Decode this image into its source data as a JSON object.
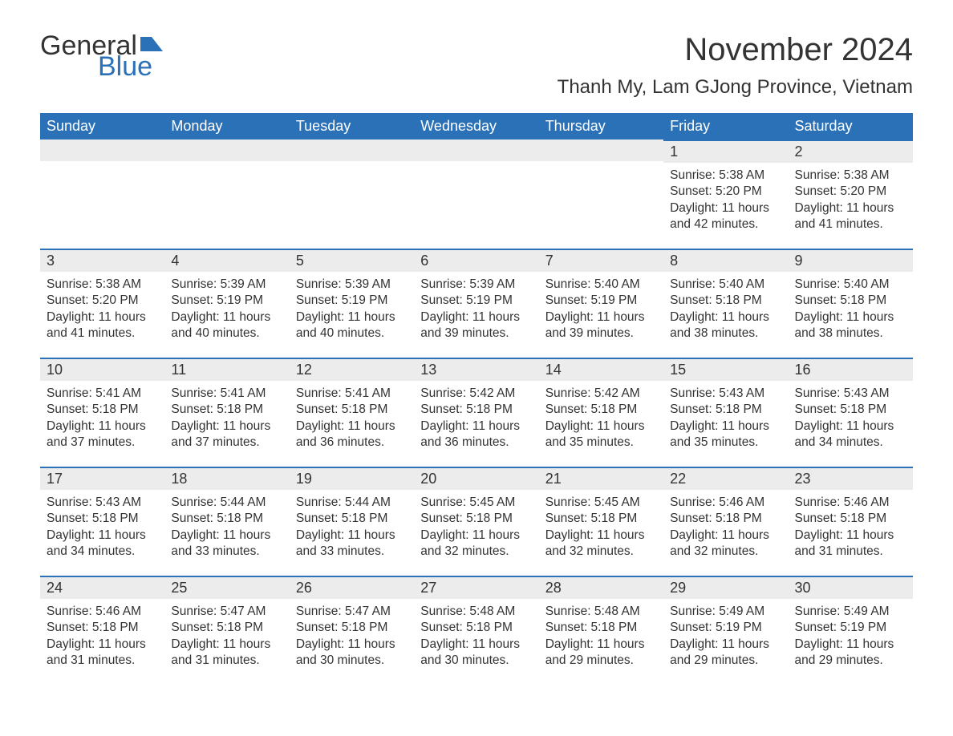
{
  "logo": {
    "text_general": "General",
    "text_blue": "Blue"
  },
  "header": {
    "month_title": "November 2024",
    "location": "Thanh My, Lam GJong Province, Vietnam"
  },
  "colors": {
    "brand_blue": "#2b71b8",
    "header_row_bg": "#2b71b8",
    "header_row_text": "#ffffff",
    "daynum_bg": "#ececec",
    "body_text": "#333333",
    "page_bg": "#ffffff"
  },
  "typography": {
    "month_title_pt": 40,
    "location_pt": 24,
    "weekday_pt": 18,
    "daynum_pt": 18,
    "body_pt": 15.5,
    "font_family": "Arial"
  },
  "calendar": {
    "weekdays": [
      "Sunday",
      "Monday",
      "Tuesday",
      "Wednesday",
      "Thursday",
      "Friday",
      "Saturday"
    ],
    "leading_blanks": 5,
    "days": [
      {
        "n": 1,
        "sunrise": "5:38 AM",
        "sunset": "5:20 PM",
        "daylight": "11 hours and 42 minutes."
      },
      {
        "n": 2,
        "sunrise": "5:38 AM",
        "sunset": "5:20 PM",
        "daylight": "11 hours and 41 minutes."
      },
      {
        "n": 3,
        "sunrise": "5:38 AM",
        "sunset": "5:20 PM",
        "daylight": "11 hours and 41 minutes."
      },
      {
        "n": 4,
        "sunrise": "5:39 AM",
        "sunset": "5:19 PM",
        "daylight": "11 hours and 40 minutes."
      },
      {
        "n": 5,
        "sunrise": "5:39 AM",
        "sunset": "5:19 PM",
        "daylight": "11 hours and 40 minutes."
      },
      {
        "n": 6,
        "sunrise": "5:39 AM",
        "sunset": "5:19 PM",
        "daylight": "11 hours and 39 minutes."
      },
      {
        "n": 7,
        "sunrise": "5:40 AM",
        "sunset": "5:19 PM",
        "daylight": "11 hours and 39 minutes."
      },
      {
        "n": 8,
        "sunrise": "5:40 AM",
        "sunset": "5:18 PM",
        "daylight": "11 hours and 38 minutes."
      },
      {
        "n": 9,
        "sunrise": "5:40 AM",
        "sunset": "5:18 PM",
        "daylight": "11 hours and 38 minutes."
      },
      {
        "n": 10,
        "sunrise": "5:41 AM",
        "sunset": "5:18 PM",
        "daylight": "11 hours and 37 minutes."
      },
      {
        "n": 11,
        "sunrise": "5:41 AM",
        "sunset": "5:18 PM",
        "daylight": "11 hours and 37 minutes."
      },
      {
        "n": 12,
        "sunrise": "5:41 AM",
        "sunset": "5:18 PM",
        "daylight": "11 hours and 36 minutes."
      },
      {
        "n": 13,
        "sunrise": "5:42 AM",
        "sunset": "5:18 PM",
        "daylight": "11 hours and 36 minutes."
      },
      {
        "n": 14,
        "sunrise": "5:42 AM",
        "sunset": "5:18 PM",
        "daylight": "11 hours and 35 minutes."
      },
      {
        "n": 15,
        "sunrise": "5:43 AM",
        "sunset": "5:18 PM",
        "daylight": "11 hours and 35 minutes."
      },
      {
        "n": 16,
        "sunrise": "5:43 AM",
        "sunset": "5:18 PM",
        "daylight": "11 hours and 34 minutes."
      },
      {
        "n": 17,
        "sunrise": "5:43 AM",
        "sunset": "5:18 PM",
        "daylight": "11 hours and 34 minutes."
      },
      {
        "n": 18,
        "sunrise": "5:44 AM",
        "sunset": "5:18 PM",
        "daylight": "11 hours and 33 minutes."
      },
      {
        "n": 19,
        "sunrise": "5:44 AM",
        "sunset": "5:18 PM",
        "daylight": "11 hours and 33 minutes."
      },
      {
        "n": 20,
        "sunrise": "5:45 AM",
        "sunset": "5:18 PM",
        "daylight": "11 hours and 32 minutes."
      },
      {
        "n": 21,
        "sunrise": "5:45 AM",
        "sunset": "5:18 PM",
        "daylight": "11 hours and 32 minutes."
      },
      {
        "n": 22,
        "sunrise": "5:46 AM",
        "sunset": "5:18 PM",
        "daylight": "11 hours and 32 minutes."
      },
      {
        "n": 23,
        "sunrise": "5:46 AM",
        "sunset": "5:18 PM",
        "daylight": "11 hours and 31 minutes."
      },
      {
        "n": 24,
        "sunrise": "5:46 AM",
        "sunset": "5:18 PM",
        "daylight": "11 hours and 31 minutes."
      },
      {
        "n": 25,
        "sunrise": "5:47 AM",
        "sunset": "5:18 PM",
        "daylight": "11 hours and 31 minutes."
      },
      {
        "n": 26,
        "sunrise": "5:47 AM",
        "sunset": "5:18 PM",
        "daylight": "11 hours and 30 minutes."
      },
      {
        "n": 27,
        "sunrise": "5:48 AM",
        "sunset": "5:18 PM",
        "daylight": "11 hours and 30 minutes."
      },
      {
        "n": 28,
        "sunrise": "5:48 AM",
        "sunset": "5:18 PM",
        "daylight": "11 hours and 29 minutes."
      },
      {
        "n": 29,
        "sunrise": "5:49 AM",
        "sunset": "5:19 PM",
        "daylight": "11 hours and 29 minutes."
      },
      {
        "n": 30,
        "sunrise": "5:49 AM",
        "sunset": "5:19 PM",
        "daylight": "11 hours and 29 minutes."
      }
    ],
    "labels": {
      "sunrise_prefix": "Sunrise: ",
      "sunset_prefix": "Sunset: ",
      "daylight_prefix": "Daylight: "
    }
  }
}
